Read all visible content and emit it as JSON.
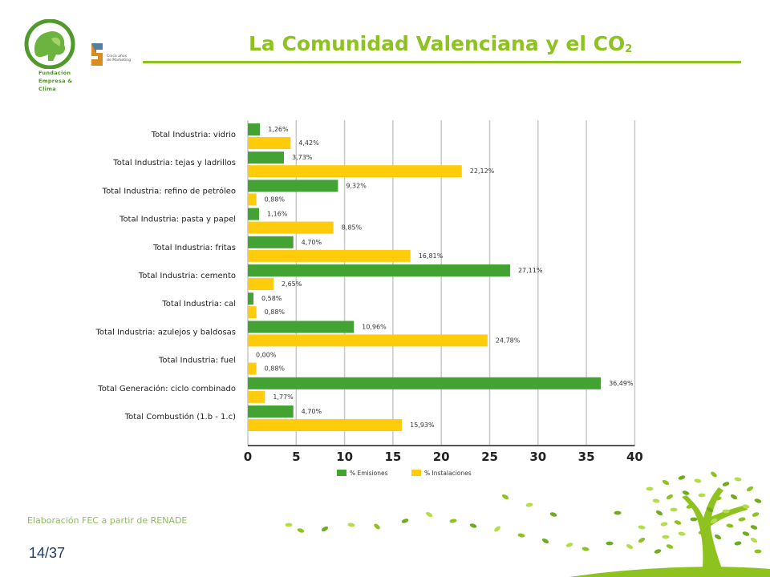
{
  "header": {
    "title": "La Comunidad Valenciana y el CO",
    "title_sub": "2",
    "logo_fec_lines": [
      "Fundación",
      "Empresa &",
      "Clima"
    ],
    "logo_cinco_text": "Cinco años de Marketing"
  },
  "footer": {
    "source": "Elaboración FEC a partir de RENADE",
    "page": "14/37"
  },
  "colors": {
    "accent": "#8dc21f",
    "emisiones": "#43a332",
    "instalaciones": "#fecc0a",
    "grid": "#c8c8c8"
  },
  "chart_data": {
    "type": "bar",
    "orientation": "horizontal",
    "categories": [
      "Total Industria: vidrio",
      "Total Industria: tejas y ladrillos",
      "Total Industria: refino de petróleo",
      "Total Industria: pasta y papel",
      "Total Industria: fritas",
      "Total Industria: cemento",
      "Total Industria: cal",
      "Total Industria: azulejos y baldosas",
      "Total Industria: fuel",
      "Total Generación: ciclo combinado",
      "Total Combustión (1.b - 1.c)"
    ],
    "series": [
      {
        "name": "% Emisiones",
        "values": [
          1.26,
          3.73,
          9.32,
          1.16,
          4.7,
          27.11,
          0.58,
          10.96,
          0.0,
          36.49,
          4.7
        ],
        "labels": [
          "1,26%",
          "3,73%",
          "9,32%",
          "1,16%",
          "4,70%",
          "27,11%",
          "0,58%",
          "10,96%",
          "0,00%",
          "36,49%",
          "4,70%"
        ]
      },
      {
        "name": "% Instalaciones",
        "values": [
          4.42,
          22.12,
          0.88,
          8.85,
          16.81,
          2.65,
          0.88,
          24.78,
          0.88,
          1.77,
          15.93
        ],
        "labels": [
          "4,42%",
          "22,12%",
          "0,88%",
          "8,85%",
          "16,81%",
          "2,65%",
          "0,88%",
          "24,78%",
          "0,88%",
          "1,77%",
          "15,93%"
        ]
      }
    ],
    "xlim": [
      0,
      40
    ],
    "xticks": [
      "0",
      "5",
      "10",
      "15",
      "20",
      "25",
      "30",
      "35",
      "40"
    ],
    "grid": true,
    "legend": "bottom"
  }
}
